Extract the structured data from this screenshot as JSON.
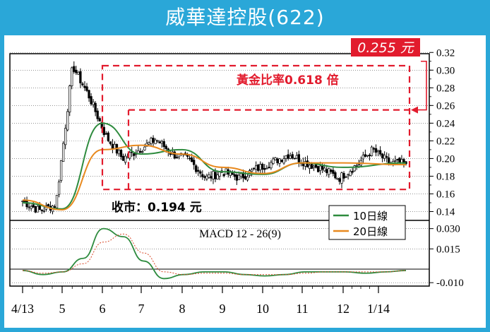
{
  "title": "威華達控股(622)",
  "annotations": {
    "target_price": "0.255 元",
    "golden_ratio": "黃金比率0.618 倍",
    "close_label": "收市：0.194 元",
    "macd_label": "MACD 12 - 26(9)"
  },
  "colors": {
    "frame": "#2aa7d8",
    "ma10": "#2e8b3e",
    "ma20": "#e8891e",
    "macd": "#2e8b3e",
    "signal": "#d94a2a",
    "annotation": "#e21b2d"
  },
  "chart_data": [
    {
      "type": "candlestick",
      "title": "",
      "x_ticks": [
        "4/13",
        "5",
        "6",
        "7",
        "8",
        "9",
        "10",
        "11",
        "12",
        "1/14"
      ],
      "y_ticks": [
        "0.32",
        "0.30",
        "0.28",
        "0.26",
        "0.24",
        "0.22",
        "0.20",
        "0.18",
        "0.16",
        "0.14"
      ],
      "ylim": [
        0.13,
        0.325
      ],
      "grid": true,
      "legend": "bottom-right",
      "series": [
        {
          "name": "10日線",
          "x": [
            "4/13",
            "5",
            "6",
            "7",
            "8",
            "9",
            "10",
            "11",
            "12",
            "1/14"
          ],
          "values": [
            0.15,
            0.143,
            0.24,
            0.205,
            0.21,
            0.185,
            0.182,
            0.195,
            0.19,
            0.195
          ]
        },
        {
          "name": "20日線",
          "x": [
            "4/13",
            "5",
            "6",
            "7",
            "8",
            "9",
            "10",
            "11",
            "12",
            "1/14"
          ],
          "values": [
            0.153,
            0.142,
            0.21,
            0.215,
            0.205,
            0.19,
            0.183,
            0.195,
            0.195,
            0.193
          ]
        }
      ],
      "price_path": [
        0.152,
        0.141,
        0.148,
        0.305,
        0.27,
        0.225,
        0.2,
        0.21,
        0.222,
        0.205,
        0.198,
        0.178,
        0.185,
        0.178,
        0.188,
        0.196,
        0.205,
        0.195,
        0.188,
        0.178,
        0.192,
        0.21,
        0.195,
        0.194
      ],
      "annotations": [
        {
          "text": "0.255 元",
          "y": 0.255
        },
        {
          "text": "黃金比率0.618 倍",
          "range": [
            0.165,
            0.305
          ]
        },
        {
          "text": "收市：0.194 元",
          "y": 0.194
        }
      ]
    },
    {
      "type": "line",
      "title": "MACD 12 - 26(9)",
      "y_ticks": [
        "0.030",
        "0.015",
        "-0.010"
      ],
      "ylim": [
        -0.012,
        0.034
      ],
      "series": [
        {
          "name": "",
          "values": [
            -0.001,
            -0.004,
            -0.002,
            0.008,
            0.03,
            0.024,
            0.006,
            -0.007,
            -0.004,
            -0.002,
            -0.002,
            -0.004,
            -0.005,
            -0.004,
            -0.002,
            -0.002,
            -0.002,
            -0.003,
            -0.002,
            -0.001
          ]
        },
        {
          "name": "",
          "values": [
            -0.001,
            -0.003,
            -0.002,
            0.004,
            0.02,
            0.026,
            0.012,
            -0.002,
            -0.004,
            -0.003,
            -0.003,
            -0.004,
            -0.004,
            -0.004,
            -0.003,
            -0.002,
            -0.002,
            -0.002,
            -0.002,
            -0.001
          ]
        }
      ]
    }
  ]
}
